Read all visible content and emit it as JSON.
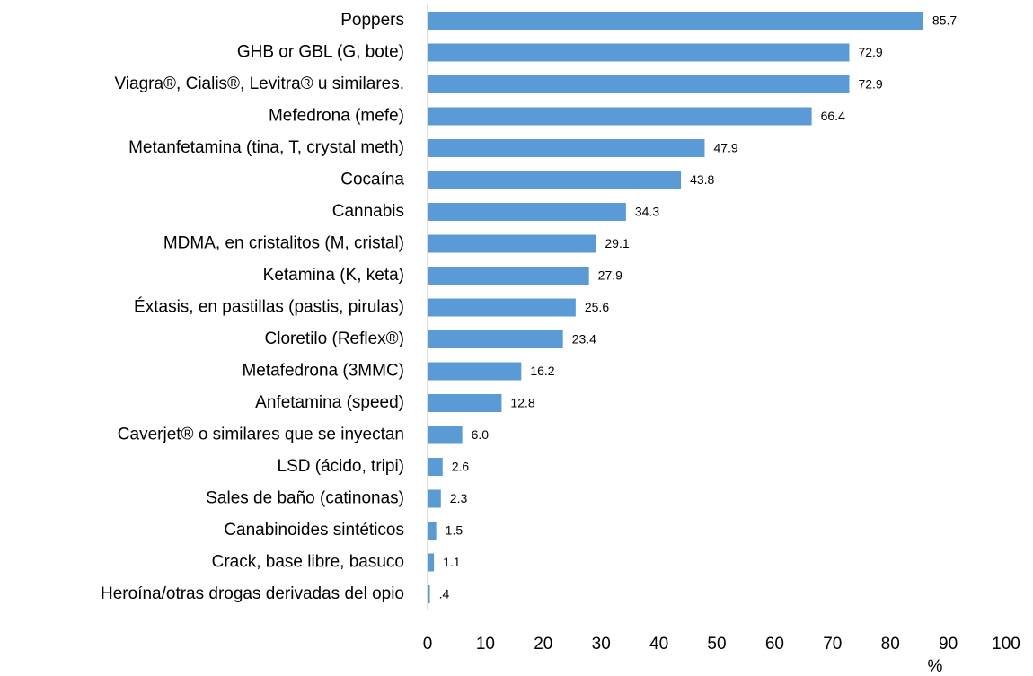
{
  "chart_data": {
    "type": "bar",
    "orientation": "horizontal",
    "categories": [
      "Poppers",
      "GHB or GBL (G, bote)",
      "Viagra®, Cialis®, Levitra® u similares.",
      "Mefedrona (mefe)",
      "Metanfetamina (tina, T, crystal meth)",
      "Cocaína",
      "Cannabis",
      "MDMA, en cristalitos (M, cristal)",
      "Ketamina (K, keta)",
      "Éxtasis, en pastillas (pastis, pirulas)",
      "Cloretilo (Reflex®)",
      "Metafedrona (3MMC)",
      "Anfetamina (speed)",
      "Caverjet® o similares que se inyectan",
      "LSD (ácido, tripi)",
      "Sales de baño (catinonas)",
      "Canabinoides sintéticos",
      "Crack, base libre, basuco",
      "Heroína/otras drogas derivadas del opio"
    ],
    "values": [
      85.7,
      72.9,
      72.9,
      66.4,
      47.9,
      43.8,
      34.3,
      29.1,
      27.9,
      25.6,
      23.4,
      16.2,
      12.8,
      6.0,
      2.6,
      2.3,
      1.5,
      1.1,
      0.4
    ],
    "value_labels": [
      "85.7",
      "72.9",
      "72.9",
      "66.4",
      "47.9",
      "43.8",
      "34.3",
      "29.1",
      "27.9",
      "25.6",
      "23.4",
      "16.2",
      "12.8",
      "6.0",
      "2.6",
      "2.3",
      "1.5",
      "1.1",
      ".4"
    ],
    "color": "#5b9bd5",
    "xlabel": "%",
    "xlim": [
      0,
      100
    ],
    "xticks": [
      0,
      10,
      20,
      30,
      40,
      50,
      60,
      70,
      80,
      90,
      100
    ],
    "grid": false
  }
}
